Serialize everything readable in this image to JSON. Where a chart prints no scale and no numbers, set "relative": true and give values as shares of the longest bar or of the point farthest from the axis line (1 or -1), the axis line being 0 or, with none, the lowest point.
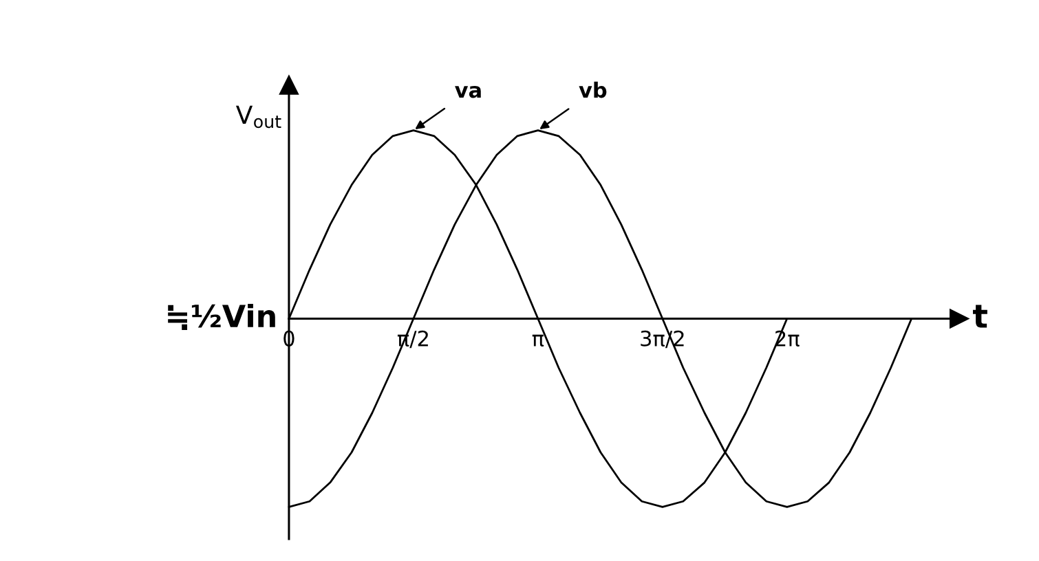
{
  "chart_data": {
    "type": "line",
    "relative": true,
    "xlabel": "t",
    "ylabel": "V$_{out}$",
    "tick_labels": "x",
    "xlim": [
      0,
      8.45
    ],
    "xticks": [
      0,
      {
        "value": 1.57,
        "label": "π/2"
      },
      {
        "value": 3.14,
        "label": "π"
      },
      {
        "value": 4.71,
        "label": "3π/2"
      },
      {
        "value": 6.28,
        "label": "2π"
      }
    ],
    "annotations": [
      {
        "text": "≒½Vin",
        "x": 0,
        "y": 0
      }
    ],
    "series": [
      {
        "name": "va",
        "color": "#000000",
        "x": [
          0,
          0.26,
          0.52,
          0.79,
          1.05,
          1.31,
          1.57,
          1.83,
          2.09,
          2.36,
          2.62,
          2.88,
          3.14,
          3.4,
          3.67,
          3.93,
          4.19,
          4.45,
          4.71,
          4.97,
          5.24,
          5.5,
          5.76,
          6.02,
          6.28
        ],
        "values": [
          0,
          0.26,
          0.5,
          0.71,
          0.87,
          0.97,
          1,
          0.97,
          0.87,
          0.71,
          0.5,
          0.26,
          0,
          -0.26,
          -0.5,
          -0.71,
          -0.87,
          -0.97,
          -1,
          -0.97,
          -0.87,
          -0.71,
          -0.5,
          -0.26,
          0
        ]
      },
      {
        "name": "vb",
        "color": "#000000",
        "x": [
          0,
          0.26,
          0.52,
          0.79,
          1.05,
          1.31,
          1.57,
          1.83,
          2.09,
          2.36,
          2.62,
          2.88,
          3.14,
          3.4,
          3.67,
          3.93,
          4.19,
          4.45,
          4.71,
          4.97,
          5.24,
          5.5,
          5.76,
          6.02,
          6.28,
          6.54,
          6.81,
          7.07,
          7.33,
          7.59,
          7.85
        ],
        "values": [
          -1,
          -0.97,
          -0.87,
          -0.71,
          -0.5,
          -0.26,
          0,
          0.26,
          0.5,
          0.71,
          0.87,
          0.97,
          1,
          0.97,
          0.87,
          0.71,
          0.5,
          0.26,
          0,
          -0.26,
          -0.5,
          -0.71,
          -0.87,
          -0.97,
          -1,
          -0.97,
          -0.87,
          -0.71,
          -0.5,
          -0.26,
          0
        ]
      }
    ]
  }
}
